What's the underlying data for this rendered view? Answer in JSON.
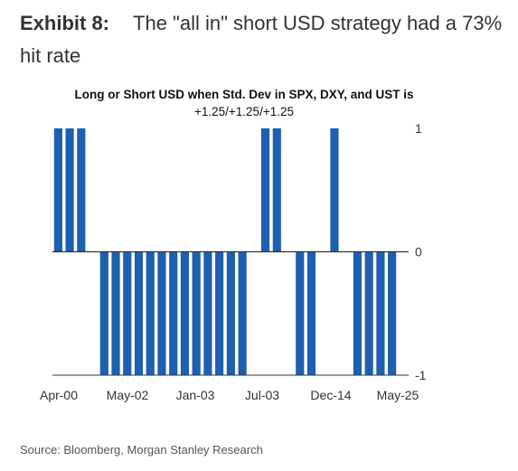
{
  "exhibit": {
    "label": "Exhibit 8:",
    "title": "The \"all in\" short USD strategy had a 73% hit rate"
  },
  "source": "Source: Bloomberg, Morgan Stanley Research",
  "colors": {
    "bar": "#1F5FAF",
    "axis": "#333333",
    "text": "#333333"
  },
  "chart_data": {
    "type": "bar",
    "title": "Long or Short USD when Std. Dev in SPX, DXY, and UST is",
    "subtitle": "+1.25/+1.25/+1.25",
    "xlabel": "",
    "ylabel": "",
    "ylim": [
      -1,
      1
    ],
    "yticks": [
      1,
      0,
      -1
    ],
    "yaxis_position": "right",
    "grid": false,
    "legend": "none",
    "xtick_labels": [
      "Apr-00",
      "May-02",
      "Jan-03",
      "Jul-03",
      "Dec-14",
      "May-25"
    ],
    "values": [
      1,
      1,
      1,
      0,
      -1,
      -1,
      -1,
      -1,
      -1,
      -1,
      -1,
      -1,
      -1,
      -1,
      -1,
      -1,
      -1,
      0,
      1,
      1,
      0,
      -1,
      -1,
      0,
      1,
      0,
      -1,
      -1,
      -1,
      -1
    ]
  }
}
